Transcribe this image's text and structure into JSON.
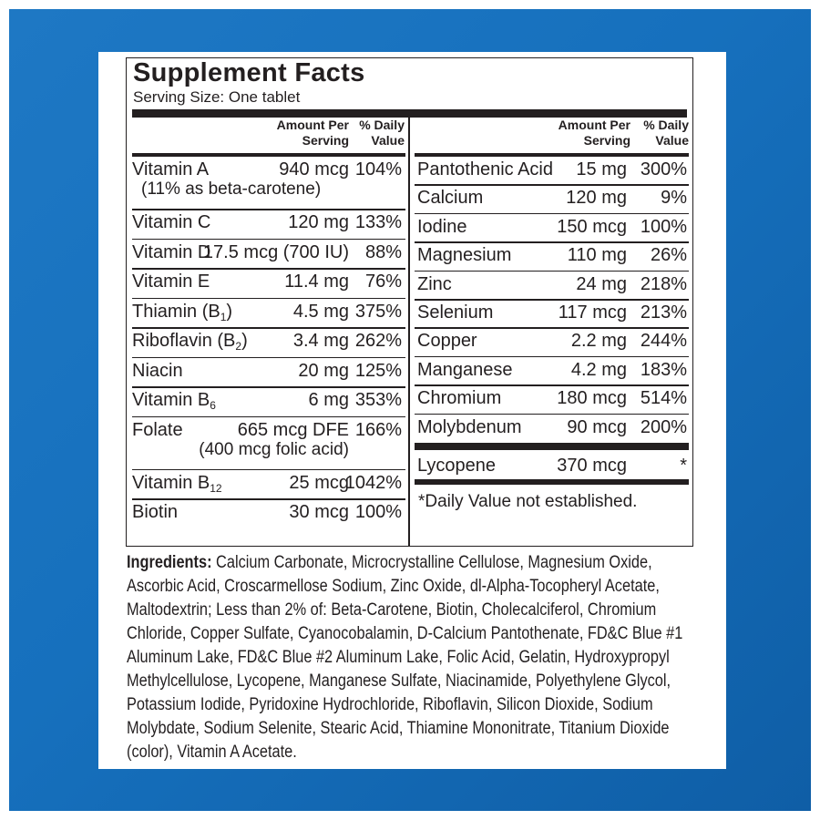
{
  "title": "Supplement Facts",
  "serving_size": "Serving Size: One tablet",
  "column_headers": {
    "amount": "Amount Per\nServing",
    "dv": "% Daily\nValue"
  },
  "left_nutrients": [
    {
      "name": "Vitamin A",
      "amount": "940 mcg",
      "dv": "104%",
      "sub": "(11% as beta-carotene)"
    },
    {
      "name": "Vitamin C",
      "amount": "120 mg",
      "dv": "133%"
    },
    {
      "name": "Vitamin D",
      "amount": "17.5 mcg (700 IU)",
      "dv": "88%"
    },
    {
      "name": "Vitamin E",
      "amount": "11.4 mg",
      "dv": "76%"
    },
    {
      "name": "Thiamin (B",
      "name_sub": "1",
      "name_tail": ")",
      "amount": "4.5 mg",
      "dv": "375%"
    },
    {
      "name": "Riboflavin (B",
      "name_sub": "2",
      "name_tail": ")",
      "amount": "3.4 mg",
      "dv": "262%"
    },
    {
      "name": "Niacin",
      "amount": "20 mg",
      "dv": "125%"
    },
    {
      "name": "Vitamin B",
      "name_sub": "6",
      "amount": "6 mg",
      "dv": "353%"
    },
    {
      "name": "Folate",
      "amount": "665 mcg DFE",
      "dv": "166%",
      "sub": "(400 mcg folic acid)"
    },
    {
      "name": "Vitamin B",
      "name_sub": "12",
      "amount": "25 mcg",
      "dv": "1042%"
    },
    {
      "name": "Biotin",
      "amount": "30 mcg",
      "dv": "100%"
    }
  ],
  "right_nutrients": [
    {
      "name": "Pantothenic Acid",
      "amount": "15 mg",
      "dv": "300%"
    },
    {
      "name": "Calcium",
      "amount": "120 mg",
      "dv": "9%"
    },
    {
      "name": "Iodine",
      "amount": "150 mcg",
      "dv": "100%"
    },
    {
      "name": "Magnesium",
      "amount": "110 mg",
      "dv": "26%"
    },
    {
      "name": "Zinc",
      "amount": "24 mg",
      "dv": "218%"
    },
    {
      "name": "Selenium",
      "amount": "117 mcg",
      "dv": "213%"
    },
    {
      "name": "Copper",
      "amount": "2.2 mg",
      "dv": "244%"
    },
    {
      "name": "Manganese",
      "amount": "4.2 mg",
      "dv": "183%"
    },
    {
      "name": "Chromium",
      "amount": "180 mcg",
      "dv": "514%"
    },
    {
      "name": "Molybdenum",
      "amount": "90 mcg",
      "dv": "200%"
    }
  ],
  "lycopene": {
    "name": "Lycopene",
    "amount": "370 mcg",
    "dv": "*"
  },
  "footnote": "*Daily Value not established.",
  "ingredients_label": "Ingredients:",
  "ingredients_lines": [
    "Calcium Carbonate, Microcrystalline Cellulose, Magnesium Oxide,",
    "Ascorbic Acid, Croscarmellose Sodium, Zinc Oxide, dl-Alpha-Tocopheryl Acetate,",
    "Maltodextrin; Less than 2% of: Beta-Carotene, Biotin, Cholecalciferol, Chromium",
    "Chloride, Copper Sulfate, Cyanocobalamin, D-Calcium Pantothenate, FD&C Blue #1",
    "Aluminum Lake, FD&C Blue #2 Aluminum Lake, Folic Acid, Gelatin, Hydroxypropyl",
    "Methylcellulose, Lycopene, Manganese Sulfate, Niacinamide, Polyethylene Glycol,",
    "Potassium Iodide, Pyridoxine Hydrochloride, Riboflavin, Silicon Dioxide, Sodium",
    "Molybdate, Sodium Selenite, Stearic Acid, Thiamine Mononitrate, Titanium Dioxide",
    "(color), Vitamin A Acetate."
  ],
  "colors": {
    "background_blue": "#1670bd",
    "ink": "#231f20",
    "panel": "#ffffff"
  }
}
